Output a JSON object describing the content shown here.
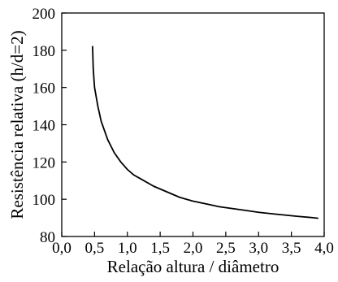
{
  "chart_data": {
    "type": "line",
    "title": "",
    "xlabel": "Relação altura / diâmetro",
    "ylabel": "Resistência relativa (h/d=2)",
    "xlim": [
      0.0,
      4.0
    ],
    "ylim": [
      80,
      200
    ],
    "xticks": [
      0.0,
      0.5,
      1.0,
      1.5,
      2.0,
      2.5,
      3.0,
      3.5,
      4.0
    ],
    "xtick_labels": [
      "0,0",
      "0,5",
      "1,0",
      "1,5",
      "2,0",
      "2,5",
      "3,0",
      "3,5",
      "4,0"
    ],
    "yticks": [
      80,
      100,
      120,
      140,
      160,
      180,
      200
    ],
    "ytick_labels": [
      "80",
      "100",
      "120",
      "140",
      "160",
      "180",
      "200"
    ],
    "grid": false,
    "legend": "none",
    "series": [
      {
        "color": "#000000",
        "x": [
          0.47,
          0.48,
          0.5,
          0.55,
          0.6,
          0.7,
          0.8,
          0.9,
          1.0,
          1.1,
          1.2,
          1.4,
          1.6,
          1.8,
          2.0,
          2.2,
          2.4,
          2.6,
          2.8,
          3.0,
          3.2,
          3.4,
          3.6,
          3.8,
          3.9
        ],
        "y": [
          182,
          170,
          160,
          150,
          142,
          132,
          125,
          120,
          116,
          113,
          111,
          107,
          104,
          101,
          99,
          97.5,
          96,
          95,
          94,
          93,
          92.2,
          91.5,
          90.8,
          90.2,
          89.8
        ]
      }
    ]
  }
}
